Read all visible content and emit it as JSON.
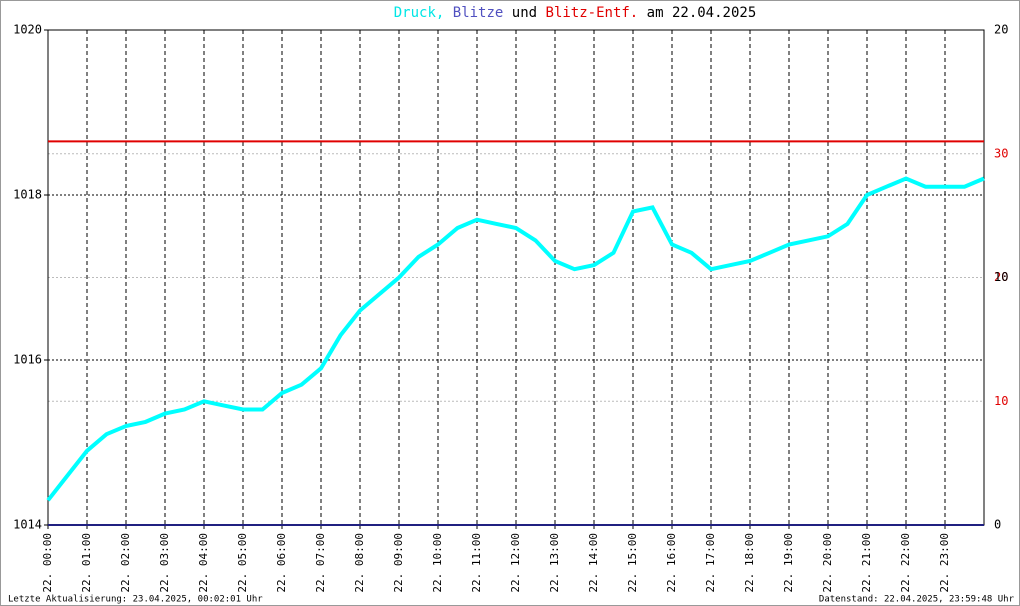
{
  "chart_data": {
    "type": "line",
    "title_parts": [
      {
        "text": "Druck,",
        "color": "#00e6e6"
      },
      {
        "text": "Blitze",
        "color": "#5050c0"
      },
      {
        "text": "und",
        "color": "#000000"
      },
      {
        "text": "Blitz-Entf.",
        "color": "#e00000"
      },
      {
        "text": "am 22.04.2025",
        "color": "#000000"
      }
    ],
    "footer_left": "Letzte Aktualisierung: 23.04.2025, 00:02:01 Uhr",
    "footer_right": "Datenstand: 22.04.2025, 23:59:48 Uhr",
    "xlim": [
      0,
      24
    ],
    "xticks": [
      {
        "value": 0,
        "label": "22. 00:00"
      },
      {
        "value": 1,
        "label": "22. 01:00"
      },
      {
        "value": 2,
        "label": "22. 02:00"
      },
      {
        "value": 3,
        "label": "22. 03:00"
      },
      {
        "value": 4,
        "label": "22. 04:00"
      },
      {
        "value": 5,
        "label": "22. 05:00"
      },
      {
        "value": 6,
        "label": "22. 06:00"
      },
      {
        "value": 7,
        "label": "22. 07:00"
      },
      {
        "value": 8,
        "label": "22. 08:00"
      },
      {
        "value": 9,
        "label": "22. 09:00"
      },
      {
        "value": 10,
        "label": "22. 10:00"
      },
      {
        "value": 11,
        "label": "22. 11:00"
      },
      {
        "value": 12,
        "label": "22. 12:00"
      },
      {
        "value": 13,
        "label": "22. 13:00"
      },
      {
        "value": 14,
        "label": "22. 14:00"
      },
      {
        "value": 15,
        "label": "22. 15:00"
      },
      {
        "value": 16,
        "label": "22. 16:00"
      },
      {
        "value": 17,
        "label": "22. 17:00"
      },
      {
        "value": 18,
        "label": "22. 18:00"
      },
      {
        "value": 19,
        "label": "22. 19:00"
      },
      {
        "value": 20,
        "label": "22. 20:00"
      },
      {
        "value": 21,
        "label": "22. 21:00"
      },
      {
        "value": 22,
        "label": "22. 22:00"
      },
      {
        "value": 23,
        "label": "22. 23:00"
      }
    ],
    "ylim": [
      1014,
      1020
    ],
    "yticks": [
      1014,
      1016,
      1018,
      1020
    ],
    "y2lim": [
      0,
      40
    ],
    "y2ticks": [
      10,
      20,
      30
    ],
    "y2color": "#e00000",
    "y3lim": [
      0,
      20
    ],
    "y3ticks": [
      0,
      10,
      20
    ],
    "y3color": "#000000",
    "grid": true,
    "series": [
      {
        "color": "#00ffff",
        "x": [
          0,
          0.5,
          1,
          1.5,
          2,
          2.5,
          3,
          3.5,
          4,
          4.5,
          5,
          5.5,
          6,
          6.5,
          7,
          7.5,
          8,
          8.5,
          9,
          9.5,
          10,
          10.5,
          11,
          11.5,
          12,
          12.5,
          13,
          13.5,
          14,
          14.5,
          15,
          15.5,
          16,
          16.5,
          17,
          17.5,
          18,
          18.5,
          19,
          19.5,
          20,
          20.5,
          21,
          21.5,
          22,
          22.5,
          23,
          23.5,
          24
        ],
        "values": [
          1014.3,
          1014.6,
          1014.9,
          1015.1,
          1015.2,
          1015.25,
          1015.35,
          1015.4,
          1015.5,
          1015.45,
          1015.4,
          1015.4,
          1015.6,
          1015.7,
          1015.9,
          1016.3,
          1016.6,
          1016.8,
          1017.0,
          1017.25,
          1017.4,
          1017.6,
          1017.7,
          1017.65,
          1017.6,
          1017.45,
          1017.2,
          1017.1,
          1017.15,
          1017.3,
          1017.8,
          1017.85,
          1017.4,
          1017.3,
          1017.1,
          1017.15,
          1017.2,
          1017.3,
          1017.4,
          1017.45,
          1017.5,
          1017.65,
          1018.0,
          1018.1,
          1018.2,
          1018.1,
          1018.1,
          1018.1,
          1018.2
        ]
      },
      {
        "color": "#202080",
        "axis": "y3",
        "x": [
          0,
          24
        ],
        "values": [
          0,
          0
        ]
      },
      {
        "color": "#e00000",
        "axis": "y2",
        "x": [
          0,
          24
        ],
        "values": [
          31,
          31
        ]
      }
    ]
  }
}
